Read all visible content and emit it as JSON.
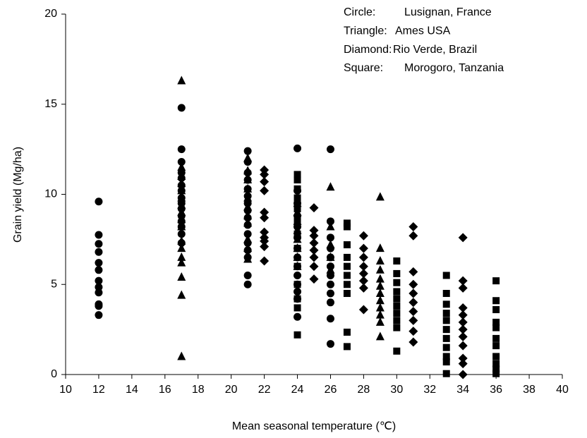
{
  "chart_data": {
    "type": "scatter",
    "xlabel": "Mean seasonal temperature (℃)",
    "ylabel": "Grain yield (Mg/ha)",
    "xlim": [
      10,
      40
    ],
    "xticks": [
      10,
      12,
      14,
      16,
      18,
      20,
      22,
      24,
      26,
      28,
      30,
      32,
      34,
      36,
      38,
      40
    ],
    "ylim": [
      0,
      20
    ],
    "yticks": [
      0,
      5,
      10,
      15,
      20
    ],
    "grid": false,
    "legend": "upper right",
    "color": "#000000",
    "series": [
      {
        "marker_label": "Circle:",
        "name": "Lusignan, France",
        "marker": "circle",
        "x": [
          12,
          12,
          12,
          12,
          12,
          12,
          12,
          12,
          12,
          12,
          12,
          12,
          17,
          17,
          17,
          17,
          17,
          17,
          17,
          17,
          17,
          17,
          17,
          17,
          17,
          17,
          17,
          21,
          21,
          21,
          21,
          21,
          21,
          21,
          21,
          21,
          21,
          21,
          21,
          21,
          21,
          21,
          21,
          24,
          24,
          24,
          24,
          24,
          24,
          24,
          24,
          24,
          24,
          24,
          24,
          24,
          24,
          26,
          26,
          26,
          26,
          26,
          26,
          26,
          26,
          26,
          26,
          26,
          26
        ],
        "values": [
          9.6,
          7.75,
          7.25,
          6.8,
          6.2,
          5.8,
          5.2,
          4.85,
          4.55,
          3.9,
          3.8,
          3.3,
          14.8,
          12.5,
          11.8,
          11.2,
          10.9,
          10.5,
          10.2,
          9.8,
          9.5,
          9.2,
          8.8,
          8.5,
          8.2,
          7.8,
          7.3,
          12.4,
          11.8,
          11.2,
          10.8,
          10.3,
          9.9,
          9.5,
          9.1,
          8.7,
          8.3,
          7.8,
          7.3,
          6.9,
          6.5,
          5.5,
          5.0,
          12.55,
          10.2,
          9.5,
          8.8,
          8.2,
          7.6,
          7.0,
          6.5,
          6.0,
          5.5,
          5.0,
          4.6,
          4.2,
          3.2,
          12.5,
          8.5,
          7.6,
          7.0,
          6.5,
          6.0,
          5.5,
          5.0,
          4.5,
          4.0,
          3.1,
          1.7
        ]
      },
      {
        "marker_label": "Triangle:",
        "name": "Ames USA",
        "marker": "triangle",
        "x": [
          17,
          17,
          17,
          17,
          17,
          17,
          17,
          17,
          17,
          17,
          17,
          17,
          17,
          17,
          17,
          17,
          17,
          21,
          21,
          21,
          21,
          21,
          21,
          21,
          21,
          21,
          21,
          21,
          24,
          24,
          24,
          24,
          24,
          24,
          24,
          24,
          26,
          26,
          26,
          26,
          26,
          29,
          29,
          29,
          29,
          29,
          29,
          29,
          29,
          29,
          29,
          29,
          29
        ],
        "values": [
          16.3,
          11.5,
          11.0,
          10.6,
          10.2,
          9.8,
          9.4,
          9.0,
          8.6,
          8.2,
          7.4,
          7.0,
          6.5,
          6.2,
          5.4,
          4.4,
          1.0,
          12.0,
          11.3,
          10.8,
          10.3,
          9.8,
          9.3,
          8.8,
          8.4,
          7.5,
          7.0,
          6.4,
          9.5,
          9.0,
          8.5,
          8.0,
          7.5,
          7.0,
          6.5,
          6.0,
          10.4,
          8.2,
          7.2,
          6.5,
          5.8,
          9.85,
          7.0,
          6.3,
          5.8,
          5.3,
          4.9,
          4.5,
          4.1,
          3.7,
          3.3,
          2.9,
          2.1
        ]
      },
      {
        "marker_label": "Diamond:",
        "name": "Rio Verde, Brazil",
        "marker": "diamond",
        "x": [
          22,
          22,
          22,
          22,
          22,
          22,
          22,
          22,
          22,
          22,
          22,
          25,
          25,
          25,
          25,
          25,
          25,
          25,
          25,
          28,
          28,
          28,
          28,
          28,
          28,
          28,
          28,
          31,
          31,
          31,
          31,
          31,
          31,
          31,
          31,
          31,
          31,
          34,
          34,
          34,
          34,
          34,
          34,
          34,
          34,
          34,
          34,
          34,
          34
        ],
        "values": [
          11.35,
          11.1,
          10.7,
          10.2,
          9.0,
          8.7,
          7.9,
          7.6,
          7.4,
          7.1,
          6.3,
          9.25,
          8.0,
          7.7,
          7.3,
          6.9,
          6.5,
          6.0,
          5.3,
          7.7,
          7.0,
          6.5,
          6.0,
          5.6,
          5.2,
          4.8,
          3.6,
          8.2,
          7.7,
          5.7,
          5.0,
          4.5,
          4.0,
          3.5,
          3.0,
          2.4,
          1.8,
          7.6,
          5.2,
          4.8,
          3.7,
          3.3,
          2.9,
          2.5,
          2.1,
          1.6,
          0.9,
          0.6,
          0.0
        ]
      },
      {
        "marker_label": "Square:",
        "name": "Morogoro, Tanzania",
        "marker": "square",
        "x": [
          24,
          24,
          24,
          24,
          24,
          24,
          24,
          24,
          24,
          24,
          24,
          24,
          24,
          27,
          27,
          27,
          27,
          27,
          27,
          27,
          27,
          27,
          27,
          30,
          30,
          30,
          30,
          30,
          30,
          30,
          30,
          30,
          30,
          33,
          33,
          33,
          33,
          33,
          33,
          33,
          33,
          33,
          33,
          33,
          36,
          36,
          36,
          36,
          36,
          36,
          36,
          36,
          36,
          36,
          36
        ],
        "values": [
          11.1,
          10.8,
          10.3,
          9.8,
          9.2,
          8.5,
          7.8,
          7.0,
          6.0,
          5.0,
          4.2,
          3.7,
          2.2,
          8.4,
          8.2,
          7.2,
          6.5,
          6.0,
          5.5,
          5.0,
          4.5,
          2.35,
          1.55,
          6.3,
          5.6,
          5.1,
          4.6,
          4.2,
          3.8,
          3.4,
          3.0,
          2.6,
          1.3,
          5.5,
          4.5,
          3.9,
          3.4,
          3.0,
          2.5,
          2.0,
          1.5,
          1.0,
          0.7,
          0.05,
          5.2,
          4.1,
          3.6,
          2.9,
          2.6,
          2.0,
          1.6,
          1.0,
          0.6,
          0.3,
          0.05
        ]
      }
    ]
  }
}
